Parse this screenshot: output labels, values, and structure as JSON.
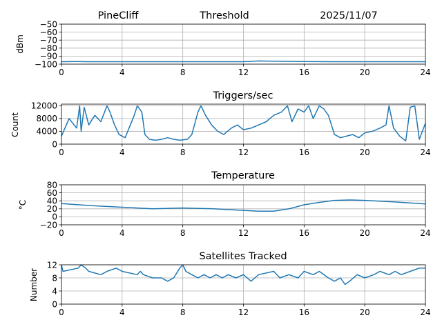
{
  "header": {
    "station": "PineCliff",
    "title": "Threshold",
    "date": "2025/11/07"
  },
  "style": {
    "line_color": "#1f77b4",
    "grid_color": "#b0b0b0",
    "axis_color": "#000000"
  },
  "chart_data": [
    {
      "type": "line",
      "title": "",
      "ylabel": "dBm",
      "xlim": [
        0,
        24
      ],
      "ylim": [
        -100,
        -50
      ],
      "x_ticks": [
        0,
        4,
        8,
        12,
        16,
        20,
        24
      ],
      "y_ticks": [
        -100,
        -90,
        -80,
        -70,
        -60,
        -50
      ],
      "grid": true,
      "series": [
        {
          "x": [
            0,
            1,
            2,
            4,
            6,
            8,
            10,
            12,
            13,
            14,
            16,
            18,
            20,
            22,
            24
          ],
          "values": [
            -97,
            -96.8,
            -97,
            -97,
            -97,
            -97,
            -97,
            -97,
            -96,
            -96.3,
            -96.8,
            -97,
            -97,
            -97,
            -97
          ]
        }
      ]
    },
    {
      "type": "line",
      "title": "Triggers/sec",
      "ylabel": "Count",
      "xlim": [
        0,
        24
      ],
      "ylim": [
        0,
        12500
      ],
      "x_ticks": [
        0,
        4,
        8,
        12,
        16,
        20,
        24
      ],
      "y_ticks": [
        0,
        4000,
        8000,
        12000
      ],
      "grid": true,
      "series": [
        {
          "x": [
            0,
            0.5,
            1.0,
            1.2,
            1.3,
            1.5,
            1.8,
            2.2,
            2.6,
            3.0,
            3.2,
            3.5,
            3.8,
            4.2,
            4.8,
            5.0,
            5.3,
            5.5,
            5.8,
            6.2,
            6.6,
            7.0,
            7.4,
            7.8,
            8.3,
            8.6,
            9.0,
            9.2,
            9.5,
            9.9,
            10.3,
            10.7,
            11.2,
            11.6,
            12.0,
            12.5,
            13.0,
            13.5,
            14.0,
            14.5,
            14.9,
            15.2,
            15.6,
            16.0,
            16.3,
            16.6,
            17.0,
            17.3,
            17.6,
            18.0,
            18.4,
            18.8,
            19.2,
            19.6,
            20.0,
            20.5,
            21.0,
            21.4,
            21.6,
            21.9,
            22.3,
            22.7,
            23.0,
            23.3,
            23.6,
            24.0
          ],
          "values": [
            2500,
            8000,
            5000,
            12000,
            4000,
            11500,
            6000,
            9000,
            7000,
            12000,
            10000,
            6000,
            3000,
            2000,
            9000,
            12000,
            10000,
            3000,
            1500,
            1200,
            1500,
            2000,
            1500,
            1200,
            1500,
            3000,
            10000,
            12000,
            9000,
            6000,
            4000,
            3000,
            5000,
            6000,
            4500,
            5000,
            6000,
            7000,
            9000,
            10000,
            12000,
            7000,
            11000,
            10000,
            12000,
            8000,
            12000,
            11000,
            9000,
            3000,
            2000,
            2500,
            3000,
            2000,
            3500,
            4000,
            5000,
            6000,
            12000,
            5000,
            2500,
            1000,
            11500,
            12000,
            1500,
            6500
          ]
        }
      ]
    },
    {
      "type": "line",
      "title": "Temperature",
      "ylabel": "°C",
      "xlim": [
        0,
        24
      ],
      "ylim": [
        -20,
        80
      ],
      "x_ticks": [
        0,
        4,
        8,
        12,
        16,
        20,
        24
      ],
      "y_ticks": [
        -20,
        0,
        20,
        40,
        60,
        80
      ],
      "grid": true,
      "series": [
        {
          "x": [
            0,
            2,
            4,
            6,
            8,
            10,
            12,
            13,
            14,
            15,
            16,
            17,
            18,
            19,
            20,
            22,
            24
          ],
          "values": [
            33,
            28,
            24,
            20,
            22,
            20,
            16,
            14,
            14,
            20,
            30,
            36,
            41,
            42,
            41,
            37,
            32
          ]
        }
      ]
    },
    {
      "type": "line",
      "title": "Satellites Tracked",
      "ylabel": "Number",
      "xlim": [
        0,
        24
      ],
      "ylim": [
        0,
        12
      ],
      "x_ticks": [
        0,
        4,
        8,
        12,
        16,
        20,
        24
      ],
      "y_ticks": [
        0,
        4,
        8,
        12
      ],
      "grid": true,
      "series": [
        {
          "x": [
            0,
            0.1,
            1.1,
            1.3,
            1.6,
            1.8,
            2.6,
            3.0,
            3.6,
            4.0,
            5.0,
            5.2,
            5.4,
            6.0,
            6.6,
            7.0,
            7.4,
            7.8,
            8.0,
            8.2,
            8.6,
            9.0,
            9.4,
            9.8,
            10.2,
            10.6,
            11.0,
            11.5,
            12.0,
            12.5,
            13.0,
            14.0,
            14.4,
            15.0,
            15.6,
            16.0,
            16.6,
            17.0,
            17.6,
            18.0,
            18.4,
            18.7,
            19.0,
            19.5,
            20.0,
            20.6,
            21.0,
            21.6,
            22.0,
            22.4,
            23.0,
            23.6,
            24.0
          ],
          "values": [
            12,
            10,
            11,
            12,
            11,
            10,
            9,
            10,
            11,
            10,
            9,
            10,
            9,
            8,
            8,
            7,
            8,
            11,
            12,
            10,
            9,
            8,
            9,
            8,
            9,
            8,
            9,
            8,
            9,
            7,
            9,
            10,
            8,
            9,
            8,
            10,
            9,
            10,
            8,
            7,
            8,
            6,
            7,
            9,
            8,
            9,
            10,
            9,
            10,
            9,
            10,
            11,
            11
          ]
        }
      ]
    }
  ]
}
